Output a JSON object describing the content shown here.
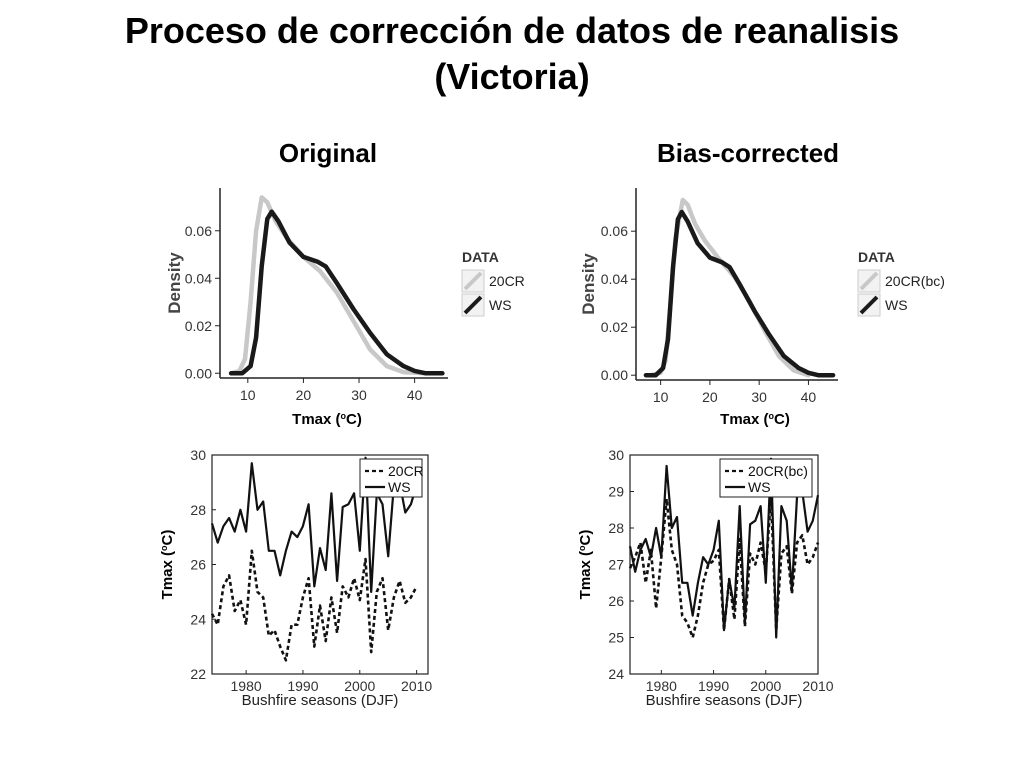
{
  "slide": {
    "title_line1": "Proceso de corrección de datos de reanalisis",
    "title_line2": "(Victoria)"
  },
  "panels": {
    "left_heading": "Original",
    "right_heading": "Bias-corrected"
  },
  "colors": {
    "light_series": "#c8c8c8",
    "dark_series": "#1a1a1a"
  },
  "chart_data": [
    {
      "id": "density-original",
      "type": "line",
      "xlabel": "Tmax (oC)",
      "ylabel": "Density",
      "xlim": [
        5,
        46
      ],
      "ylim": [
        -0.002,
        0.078
      ],
      "xticks": [
        10,
        20,
        30,
        40
      ],
      "yticks": [
        0.0,
        0.02,
        0.04,
        0.06
      ],
      "ytick_labels": [
        "0.00",
        "0.02",
        "0.04",
        "0.06"
      ],
      "legend_title": "DATA",
      "series": [
        {
          "name": "20CR",
          "style": "light",
          "points": [
            [
              7,
              0
            ],
            [
              8.5,
              0.001
            ],
            [
              9.5,
              0.006
            ],
            [
              10.5,
              0.03
            ],
            [
              11.5,
              0.06
            ],
            [
              12.5,
              0.074
            ],
            [
              13.5,
              0.072
            ],
            [
              15,
              0.064
            ],
            [
              17,
              0.057
            ],
            [
              20,
              0.049
            ],
            [
              23,
              0.043
            ],
            [
              26,
              0.034
            ],
            [
              29,
              0.022
            ],
            [
              32,
              0.01
            ],
            [
              35,
              0.003
            ],
            [
              38,
              0.0005
            ],
            [
              42,
              0
            ]
          ]
        },
        {
          "name": "WS",
          "style": "dark",
          "points": [
            [
              7,
              0
            ],
            [
              9,
              0
            ],
            [
              10.5,
              0.003
            ],
            [
              11.5,
              0.015
            ],
            [
              12.5,
              0.045
            ],
            [
              13.5,
              0.065
            ],
            [
              14.3,
              0.068
            ],
            [
              15.5,
              0.064
            ],
            [
              17.5,
              0.055
            ],
            [
              20,
              0.049
            ],
            [
              22.5,
              0.047
            ],
            [
              24,
              0.045
            ],
            [
              26,
              0.038
            ],
            [
              29,
              0.027
            ],
            [
              32,
              0.017
            ],
            [
              35,
              0.008
            ],
            [
              38,
              0.003
            ],
            [
              40,
              0.001
            ],
            [
              42,
              0
            ],
            [
              45,
              0
            ]
          ]
        }
      ]
    },
    {
      "id": "density-bias-corrected",
      "type": "line",
      "xlabel": "Tmax (oC)",
      "ylabel": "Density",
      "xlim": [
        5,
        46
      ],
      "ylim": [
        -0.002,
        0.078
      ],
      "xticks": [
        10,
        20,
        30,
        40
      ],
      "yticks": [
        0.0,
        0.02,
        0.04,
        0.06
      ],
      "ytick_labels": [
        "0.00",
        "0.02",
        "0.04",
        "0.06"
      ],
      "legend_title": "DATA",
      "series": [
        {
          "name": "20CR(bc)",
          "style": "light",
          "points": [
            [
              8,
              0
            ],
            [
              10,
              0.001
            ],
            [
              11,
              0.006
            ],
            [
              12,
              0.03
            ],
            [
              13,
              0.057
            ],
            [
              14.5,
              0.073
            ],
            [
              15.5,
              0.071
            ],
            [
              17,
              0.063
            ],
            [
              19,
              0.056
            ],
            [
              22,
              0.048
            ],
            [
              25,
              0.041
            ],
            [
              28,
              0.031
            ],
            [
              31,
              0.019
            ],
            [
              34,
              0.008
            ],
            [
              37,
              0.002
            ],
            [
              40,
              0
            ]
          ]
        },
        {
          "name": "WS",
          "style": "dark",
          "points": [
            [
              7,
              0
            ],
            [
              9,
              0
            ],
            [
              10.5,
              0.003
            ],
            [
              11.5,
              0.015
            ],
            [
              12.5,
              0.045
            ],
            [
              13.5,
              0.065
            ],
            [
              14.3,
              0.068
            ],
            [
              15.5,
              0.064
            ],
            [
              17.5,
              0.055
            ],
            [
              20,
              0.049
            ],
            [
              22.5,
              0.047
            ],
            [
              24,
              0.045
            ],
            [
              26,
              0.038
            ],
            [
              29,
              0.027
            ],
            [
              32,
              0.017
            ],
            [
              35,
              0.008
            ],
            [
              38,
              0.003
            ],
            [
              40,
              0.001
            ],
            [
              42,
              0
            ],
            [
              45,
              0
            ]
          ]
        }
      ]
    },
    {
      "id": "timeseries-original",
      "type": "line",
      "xlabel": "Bushfire seasons (DJF)",
      "ylabel": "Tmax (oC)",
      "xlim": [
        1974,
        2012
      ],
      "ylim": [
        22,
        30
      ],
      "xticks": [
        1980,
        1990,
        2000,
        2010
      ],
      "yticks": [
        22,
        24,
        26,
        28,
        30
      ],
      "ytick_labels": [
        "22",
        "24",
        "26",
        "28",
        "30"
      ],
      "x": [
        1974,
        1975,
        1976,
        1977,
        1978,
        1979,
        1980,
        1981,
        1982,
        1983,
        1984,
        1985,
        1986,
        1987,
        1988,
        1989,
        1990,
        1991,
        1992,
        1993,
        1994,
        1995,
        1996,
        1997,
        1998,
        1999,
        2000,
        2001,
        2002,
        2003,
        2004,
        2005,
        2006,
        2007,
        2008,
        2009,
        2010
      ],
      "series": [
        {
          "name": "20CR",
          "style": "dashed",
          "values": [
            24.2,
            23.8,
            25.2,
            25.6,
            24.3,
            24.7,
            23.8,
            26.5,
            25.0,
            24.8,
            23.4,
            23.6,
            23.0,
            22.5,
            23.8,
            23.8,
            24.8,
            25.5,
            23.0,
            24.5,
            23.2,
            24.8,
            23.5,
            25.2,
            24.8,
            25.5,
            24.7,
            26.2,
            22.8,
            25.0,
            25.5,
            23.6,
            24.8,
            25.4,
            24.6,
            24.8,
            25.2
          ]
        },
        {
          "name": "WS",
          "style": "solid",
          "values": [
            27.5,
            26.8,
            27.4,
            27.7,
            27.2,
            28.0,
            27.2,
            29.7,
            28.0,
            28.3,
            26.5,
            26.5,
            25.6,
            26.5,
            27.2,
            27.0,
            27.4,
            28.2,
            25.2,
            26.6,
            25.8,
            28.6,
            25.4,
            28.1,
            28.2,
            28.6,
            26.5,
            29.9,
            25.0,
            28.6,
            28.2,
            26.3,
            28.9,
            29.0,
            27.9,
            28.2,
            28.9
          ]
        }
      ]
    },
    {
      "id": "timeseries-bias-corrected",
      "type": "line",
      "xlabel": "Bushfire seasons (DJF)",
      "ylabel": "Tmax (oC)",
      "xlim": [
        1974,
        2010
      ],
      "ylim": [
        24,
        30
      ],
      "xticks": [
        1980,
        1990,
        2000,
        2010
      ],
      "yticks": [
        24,
        25,
        26,
        27,
        28,
        29,
        30
      ],
      "ytick_labels": [
        "24",
        "25",
        "26",
        "27",
        "28",
        "29",
        "30"
      ],
      "x": [
        1974,
        1975,
        1976,
        1977,
        1978,
        1979,
        1980,
        1981,
        1982,
        1983,
        1984,
        1985,
        1986,
        1987,
        1988,
        1989,
        1990,
        1991,
        1992,
        1993,
        1994,
        1995,
        1996,
        1997,
        1998,
        1999,
        2000,
        2001,
        2002,
        2003,
        2004,
        2005,
        2006,
        2007,
        2008,
        2009,
        2010
      ],
      "series": [
        {
          "name": "20CR(bc)",
          "style": "dashed",
          "values": [
            26.9,
            27.2,
            27.6,
            26.5,
            27.4,
            25.8,
            27.2,
            28.8,
            27.4,
            27.0,
            25.6,
            25.4,
            25.0,
            25.6,
            26.5,
            27.0,
            27.1,
            27.4,
            25.2,
            26.6,
            25.5,
            27.7,
            25.3,
            27.3,
            27.0,
            27.6,
            26.8,
            28.9,
            25.2,
            27.3,
            27.5,
            26.2,
            27.6,
            27.8,
            27.0,
            27.2,
            27.6
          ]
        },
        {
          "name": "WS",
          "style": "solid",
          "values": [
            27.5,
            26.8,
            27.4,
            27.7,
            27.2,
            28.0,
            27.2,
            29.7,
            28.0,
            28.3,
            26.5,
            26.5,
            25.6,
            26.5,
            27.2,
            27.0,
            27.4,
            28.2,
            25.2,
            26.6,
            25.8,
            28.6,
            25.4,
            28.1,
            28.2,
            28.6,
            26.5,
            29.9,
            25.0,
            28.6,
            28.2,
            26.3,
            28.9,
            29.0,
            27.9,
            28.2,
            28.9
          ]
        }
      ]
    }
  ]
}
